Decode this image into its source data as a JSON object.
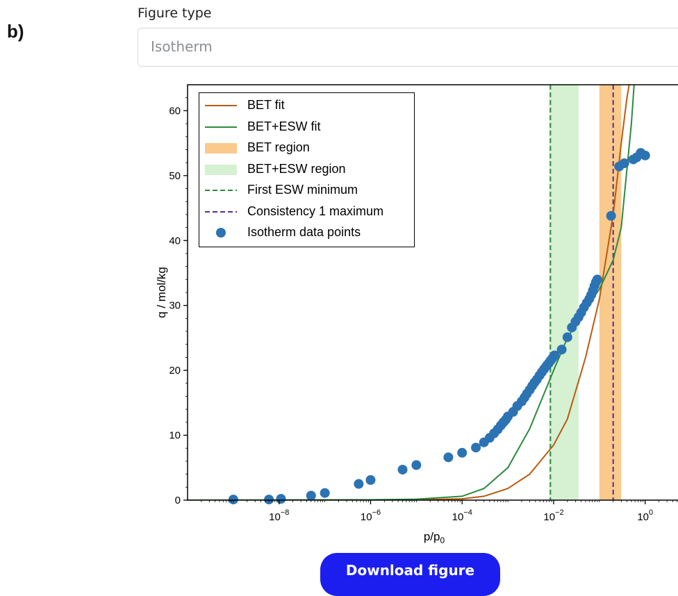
{
  "panel_label": "b)",
  "figure_type": {
    "label": "Figure type",
    "value": "Isotherm"
  },
  "download_button": {
    "label": "Download figure"
  },
  "chart_data": {
    "type": "scatter",
    "xlabel_base": "p/p",
    "xlabel_sub": "0",
    "ylabel": "q / mol/kg",
    "xscale": "log",
    "xlim": [
      1e-10,
      6
    ],
    "ylim": [
      0,
      64
    ],
    "legend_position": "top-left",
    "y_ticks": [
      0,
      10,
      20,
      30,
      40,
      50,
      60
    ],
    "x_ticks": [
      {
        "value": 1e-08,
        "base": "10",
        "exp": "−8"
      },
      {
        "value": 1e-06,
        "base": "10",
        "exp": "−6"
      },
      {
        "value": 0.0001,
        "base": "10",
        "exp": "−4"
      },
      {
        "value": 0.01,
        "base": "10",
        "exp": "−2"
      },
      {
        "value": 1,
        "base": "10",
        "exp": "0"
      }
    ],
    "colors": {
      "bet_fit": "#b85b10",
      "bet_esw_fit": "#2b8a3e",
      "bet_region": "#fac98c",
      "bet_esw_region": "#d6f0d2",
      "first_esw_minimum": "#2b8a3e",
      "consistency_maximum": "#5a2d91",
      "data_points": "#2c73b3"
    },
    "legend": [
      {
        "key": "bet_fit",
        "kind": "line",
        "label": "BET fit"
      },
      {
        "key": "bet_esw_fit",
        "kind": "line",
        "label": "BET+ESW fit"
      },
      {
        "key": "bet_region",
        "kind": "patch",
        "label": "BET region"
      },
      {
        "key": "bet_esw_region",
        "kind": "patch",
        "label": "BET+ESW region"
      },
      {
        "key": "first_esw_minimum",
        "kind": "dashed",
        "label": "First ESW minimum"
      },
      {
        "key": "consistency_maximum",
        "kind": "dashed",
        "label": "Consistency 1 maximum"
      },
      {
        "key": "data_points",
        "kind": "marker",
        "label": "Isotherm data points"
      }
    ],
    "bet_region": [
      0.1,
      0.3
    ],
    "bet_esw_region": [
      0.008,
      0.035
    ],
    "first_esw_minimum": 0.0085,
    "consistency_maximum": 0.2,
    "bet_fit": {
      "x": [
        1e-10,
        1e-06,
        1e-05,
        0.0001,
        0.0003,
        0.001,
        0.003,
        0.01,
        0.02,
        0.05,
        0.1,
        0.2,
        0.3,
        0.4,
        0.5
      ],
      "y": [
        0,
        0.01,
        0.05,
        0.2,
        0.6,
        1.8,
        4.0,
        8.5,
        12.5,
        22.0,
        31.0,
        44.0,
        55.0,
        62.0,
        66.0
      ]
    },
    "bet_esw_fit": {
      "x": [
        1e-10,
        1e-06,
        1e-05,
        0.0001,
        0.0003,
        0.001,
        0.003,
        0.01,
        0.02,
        0.05,
        0.1,
        0.2,
        0.3,
        0.5,
        0.6
      ],
      "y": [
        0,
        0.05,
        0.15,
        0.6,
        1.8,
        5.0,
        11.0,
        20.0,
        25.0,
        29.5,
        32.5,
        37.0,
        42.0,
        58.0,
        66.0
      ]
    },
    "points": {
      "x": [
        1e-09,
        6e-09,
        1.1e-08,
        5e-08,
        1e-07,
        5.5e-07,
        1e-06,
        5e-06,
        1e-05,
        5e-05,
        0.0001,
        0.0002,
        0.0003,
        0.0004,
        0.0005,
        0.0006,
        0.0007,
        0.0008,
        0.0009,
        0.001,
        0.0013,
        0.0016,
        0.002,
        0.0023,
        0.0026,
        0.003,
        0.0034,
        0.0038,
        0.0043,
        0.0049,
        0.0055,
        0.0062,
        0.007,
        0.0078,
        0.0086,
        0.0095,
        0.0105,
        0.015,
        0.02,
        0.025,
        0.03,
        0.035,
        0.04,
        0.046,
        0.053,
        0.06,
        0.066,
        0.072,
        0.078,
        0.084,
        0.09,
        0.18,
        0.27,
        0.35,
        0.55,
        0.65,
        0.8,
        1.0
      ],
      "y": [
        0.1,
        0.1,
        0.2,
        0.7,
        1.1,
        2.5,
        3.1,
        4.7,
        5.4,
        6.6,
        7.3,
        8.1,
        8.9,
        9.6,
        10.3,
        10.9,
        11.5,
        12.0,
        12.4,
        12.9,
        13.6,
        14.5,
        15.2,
        15.8,
        16.4,
        17.0,
        17.6,
        18.1,
        18.6,
        19.2,
        19.7,
        20.2,
        20.7,
        21.1,
        21.5,
        21.9,
        22.3,
        23.2,
        25.1,
        26.6,
        27.5,
        28.2,
        28.9,
        29.7,
        30.4,
        31.0,
        31.6,
        32.3,
        33.0,
        33.6,
        34.0,
        43.8,
        51.4,
        51.9,
        52.5,
        52.8,
        53.5,
        53.1
      ]
    }
  }
}
